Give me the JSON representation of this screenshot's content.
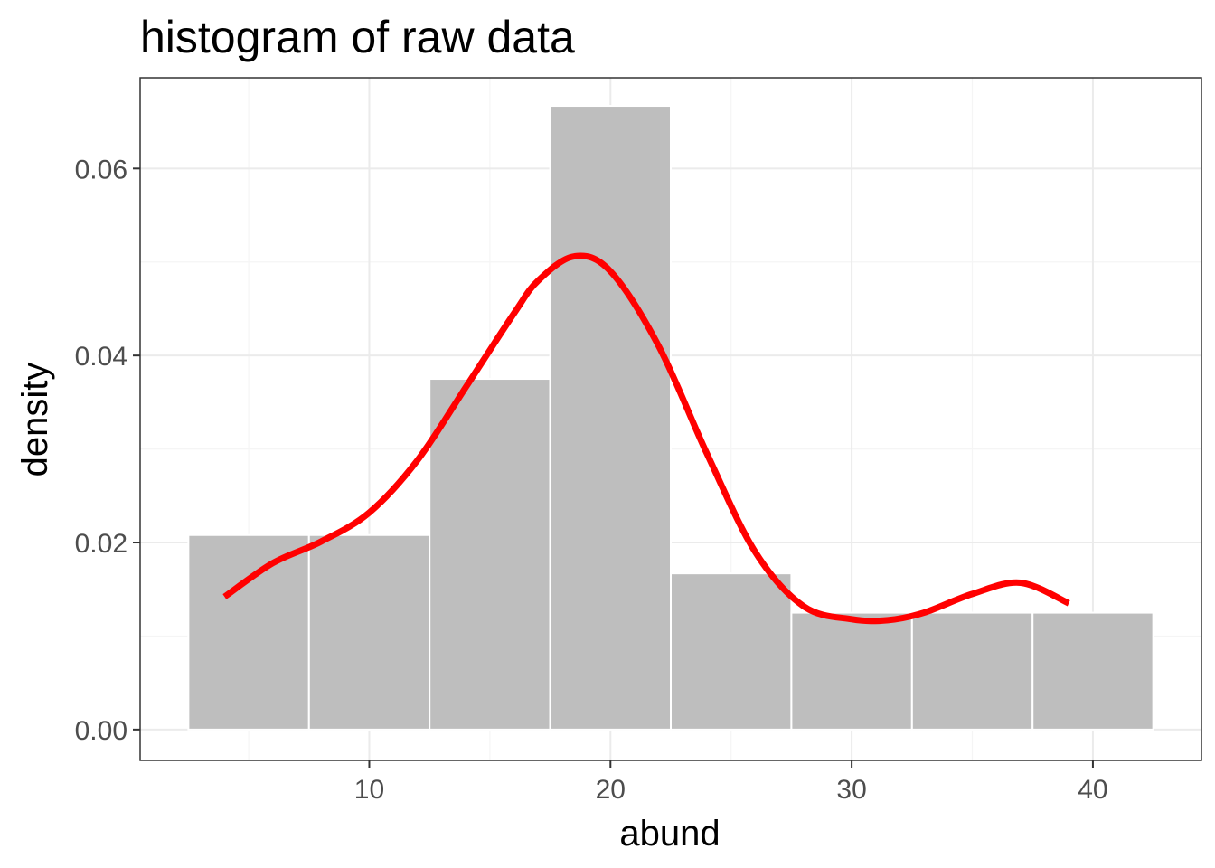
{
  "chart_data": {
    "type": "histogram",
    "title": "histogram of raw data",
    "xlabel": "abund",
    "ylabel": "density",
    "xlim": [
      0.5,
      44.5
    ],
    "ylim": [
      -0.0033,
      0.0697
    ],
    "x_ticks": [
      10,
      20,
      30,
      40
    ],
    "x_minor_ticks": [
      5,
      15,
      25,
      35
    ],
    "y_ticks": [
      0.0,
      0.02,
      0.04,
      0.06
    ],
    "y_tick_labels": [
      "0.00",
      "0.02",
      "0.04",
      "0.06"
    ],
    "y_minor_ticks": [
      0.01,
      0.03,
      0.05
    ],
    "grid": true,
    "bins": [
      {
        "x0": 2.5,
        "x1": 7.5,
        "density": 0.0208
      },
      {
        "x0": 7.5,
        "x1": 12.5,
        "density": 0.0208
      },
      {
        "x0": 12.5,
        "x1": 17.5,
        "density": 0.0375
      },
      {
        "x0": 17.5,
        "x1": 22.5,
        "density": 0.0667
      },
      {
        "x0": 22.5,
        "x1": 27.5,
        "density": 0.0167
      },
      {
        "x0": 27.5,
        "x1": 32.5,
        "density": 0.0125
      },
      {
        "x0": 32.5,
        "x1": 37.5,
        "density": 0.0125
      },
      {
        "x0": 37.5,
        "x1": 42.5,
        "density": 0.0125
      }
    ],
    "density_curve": {
      "x": [
        4,
        6,
        8,
        10,
        12,
        14,
        16,
        17,
        18.5,
        20,
        22,
        24,
        26,
        28,
        30,
        31.5,
        33,
        35,
        37,
        39
      ],
      "y": [
        0.0142,
        0.0178,
        0.0201,
        0.0232,
        0.0288,
        0.0366,
        0.0445,
        0.048,
        0.0506,
        0.049,
        0.041,
        0.0295,
        0.019,
        0.0132,
        0.0118,
        0.0117,
        0.0125,
        0.0145,
        0.0157,
        0.0135
      ]
    },
    "colors": {
      "bar_fill": "#bebebe",
      "bar_outline": "#ffffff",
      "curve": "#ff0000",
      "grid_major": "#ebebeb",
      "grid_minor": "#f5f5f5",
      "panel_border": "#333333"
    }
  }
}
